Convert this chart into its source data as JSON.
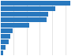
{
  "values": [
    27.0,
    21.0,
    18.5,
    17.8,
    11.0,
    4.5,
    3.8,
    3.0,
    1.8,
    1.0
  ],
  "bar_color": "#2878BE",
  "background_color": "#ffffff",
  "grid_color": "#d9d9d9",
  "xlim": [
    0,
    30
  ],
  "n_bars": 10,
  "bar_height": 0.82
}
